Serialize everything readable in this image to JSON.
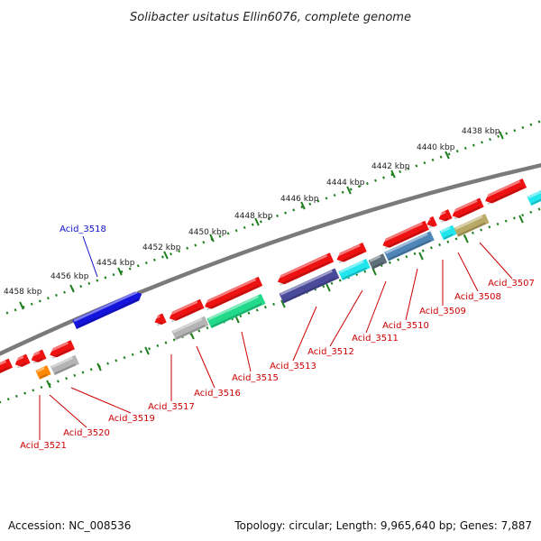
{
  "title": "Solibacter usitatus Ellin6076, complete genome",
  "footer": {
    "accession": "Accession: NC_008536",
    "summary": "Topology: circular; Length: 9,965,640 bp; Genes: 7,887"
  },
  "colors": {
    "backbone": "#7a7a7a",
    "tick": "#1f7f1f",
    "forward_label": "#1010cc",
    "reverse_label": "#cc0000",
    "gene_red": "#ee1111",
    "gene_blue": "#1414dd",
    "gene_cyan": "#22e6ee",
    "gene_gray": "#b4b4b4",
    "gene_green": "#22d98a",
    "gene_navy": "#4a4a9a",
    "gene_steel": "#4f86b8",
    "gene_darkgray": "#5f6f7a",
    "gene_olive": "#b8aa66",
    "gene_orange": "#ff8800"
  },
  "scale_labels": [
    "4438 kbp",
    "4440 kbp",
    "4442 kbp",
    "4444 kbp",
    "4446 kbp",
    "4448 kbp",
    "4450 kbp",
    "4452 kbp",
    "4454 kbp",
    "4456 kbp",
    "4458 kbp"
  ],
  "gene_labels": {
    "forward": [
      "Acid_3518"
    ],
    "reverse": [
      "Acid_3507",
      "Acid_3508",
      "Acid_3509",
      "Acid_3510",
      "Acid_3511",
      "Acid_3512",
      "Acid_3513",
      "Acid_3515",
      "Acid_3516",
      "Acid_3517",
      "Acid_3519",
      "Acid_3520",
      "Acid_3521"
    ]
  }
}
